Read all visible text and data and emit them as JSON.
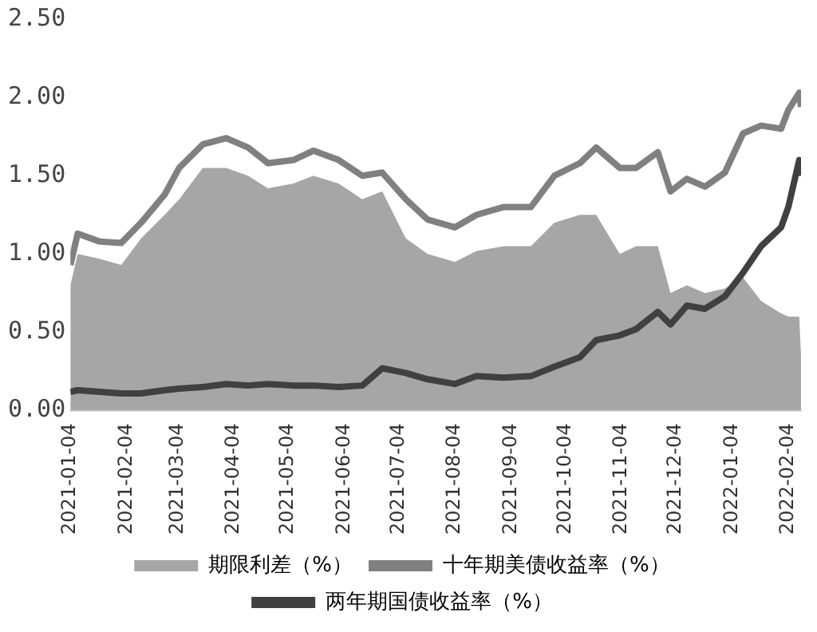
{
  "chart_data": {
    "type": "line",
    "x": [
      "2021-01-04",
      "2021-01-08",
      "2021-01-20",
      "2021-02-01",
      "2021-02-12",
      "2021-02-25",
      "2021-03-05",
      "2021-03-18",
      "2021-03-31",
      "2021-04-12",
      "2021-04-23",
      "2021-05-07",
      "2021-05-18",
      "2021-06-01",
      "2021-06-14",
      "2021-06-25",
      "2021-07-08",
      "2021-07-20",
      "2021-08-04",
      "2021-08-16",
      "2021-08-31",
      "2021-09-15",
      "2021-09-28",
      "2021-10-12",
      "2021-10-21",
      "2021-11-03",
      "2021-11-12",
      "2021-11-24",
      "2021-12-01",
      "2021-12-10",
      "2021-12-20",
      "2021-12-31",
      "2022-01-10",
      "2022-01-20",
      "2022-01-31",
      "2022-02-04",
      "2022-02-10",
      "2022-02-11"
    ],
    "series": [
      {
        "name": "期限利差（%）",
        "type": "area",
        "color": "#a6a6a6",
        "values": [
          0.8,
          1.0,
          0.97,
          0.93,
          1.1,
          1.25,
          1.35,
          1.55,
          1.55,
          1.5,
          1.42,
          1.45,
          1.5,
          1.45,
          1.35,
          1.4,
          1.1,
          1.0,
          0.95,
          1.02,
          1.05,
          1.05,
          1.2,
          1.25,
          1.25,
          1.0,
          1.05,
          1.05,
          0.75,
          0.8,
          0.75,
          0.78,
          0.85,
          0.7,
          0.62,
          0.6,
          0.6,
          0.35
        ]
      },
      {
        "name": "十年期美债收益率（%）",
        "type": "line",
        "color": "#808080",
        "values": [
          0.93,
          1.13,
          1.08,
          1.07,
          1.2,
          1.38,
          1.55,
          1.7,
          1.74,
          1.68,
          1.58,
          1.6,
          1.66,
          1.6,
          1.5,
          1.52,
          1.35,
          1.22,
          1.17,
          1.25,
          1.3,
          1.3,
          1.5,
          1.58,
          1.68,
          1.55,
          1.55,
          1.65,
          1.4,
          1.48,
          1.43,
          1.52,
          1.77,
          1.82,
          1.8,
          1.92,
          2.03,
          1.94
        ]
      },
      {
        "name": "两年期国债收益率（%）",
        "type": "line",
        "color": "#404040",
        "values": [
          0.12,
          0.13,
          0.12,
          0.11,
          0.11,
          0.13,
          0.14,
          0.15,
          0.17,
          0.16,
          0.17,
          0.16,
          0.16,
          0.15,
          0.16,
          0.27,
          0.24,
          0.2,
          0.17,
          0.22,
          0.21,
          0.22,
          0.28,
          0.34,
          0.45,
          0.48,
          0.52,
          0.63,
          0.55,
          0.67,
          0.65,
          0.73,
          0.88,
          1.05,
          1.17,
          1.3,
          1.6,
          1.5
        ]
      }
    ],
    "xlim": [
      "2021-01-04",
      "2022-02-11"
    ],
    "xticks": [
      "2021-01-04",
      "2021-02-04",
      "2021-03-04",
      "2021-04-04",
      "2021-05-04",
      "2021-06-04",
      "2021-07-04",
      "2021-08-04",
      "2021-09-04",
      "2021-10-04",
      "2021-11-04",
      "2021-12-04",
      "2022-01-04",
      "2022-02-04"
    ],
    "ylim": [
      0,
      2.5
    ],
    "yticks": [
      {
        "value": 0,
        "label": "0.00"
      },
      {
        "value": 0.5,
        "label": "0.50"
      },
      {
        "value": 1,
        "label": "1.00"
      },
      {
        "value": 1.5,
        "label": "1.50"
      },
      {
        "value": 2,
        "label": "2.00"
      },
      {
        "value": 2.5,
        "label": "2.50"
      }
    ],
    "grid": false,
    "legend": "bottom",
    "marker": "none",
    "line_style": "solid"
  }
}
